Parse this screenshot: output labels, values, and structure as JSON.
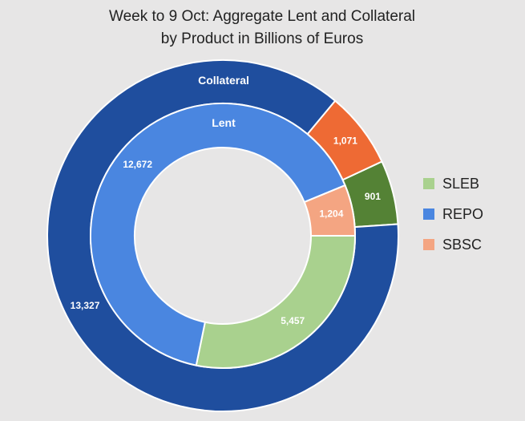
{
  "chart_data": {
    "type": "pie",
    "variant": "donut",
    "title_lines": [
      "Week to 9 Oct:  Aggregate Lent and Collateral",
      "by Product in Billions of Euros"
    ],
    "rings": [
      {
        "name": "Collateral",
        "slices": [
          {
            "category": "SLEB",
            "value": 901,
            "color": "#548235"
          },
          {
            "category": "REPO",
            "value": 13327,
            "color": "#1f4e9e"
          },
          {
            "category": "SBSC",
            "value": 1071,
            "color": "#ee6a34"
          }
        ]
      },
      {
        "name": "Lent",
        "slices": [
          {
            "category": "SLEB",
            "value": 5457,
            "color": "#a9d18e"
          },
          {
            "category": "REPO",
            "value": 12672,
            "color": "#4a86e0"
          },
          {
            "category": "SBSC",
            "value": 1204,
            "color": "#f4a582"
          }
        ]
      }
    ],
    "legend": {
      "placement": "right",
      "entries": [
        {
          "label": "SLEB",
          "color": "#a9d18e"
        },
        {
          "label": "REPO",
          "color": "#4a86e0"
        },
        {
          "label": "SBSC",
          "color": "#f4a582"
        }
      ]
    }
  }
}
